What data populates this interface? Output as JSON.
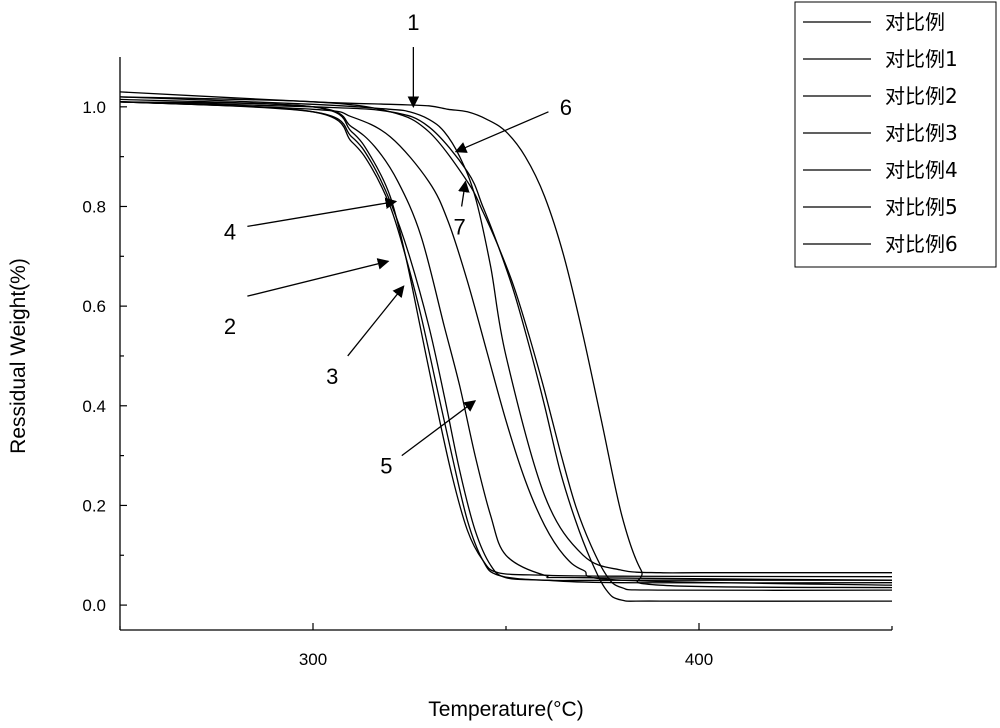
{
  "chart_data": {
    "type": "line",
    "xlabel": "Temperature(°C)",
    "ylabel": "Ressidual Weight(%)",
    "xlim": [
      250,
      450
    ],
    "ylim": [
      -0.05,
      1.1
    ],
    "x_ticks": [
      300,
      400
    ],
    "x_tick_labels": [
      "300",
      "400"
    ],
    "y_ticks": [
      0.0,
      0.2,
      0.4,
      0.6,
      0.8,
      1.0
    ],
    "y_tick_labels": [
      "0.0",
      "0.2",
      "0.4",
      "0.6",
      "0.8",
      "1.0"
    ],
    "legend_position": "top-right",
    "line_color": "#000000",
    "series": [
      {
        "name": "对比例",
        "x": [
          250,
          300,
          320,
          325,
          330,
          334,
          338,
          342,
          346,
          350,
          360,
          370,
          380,
          390,
          400,
          420,
          450
        ],
        "y": [
          1.02,
          1.005,
          0.995,
          0.99,
          0.975,
          0.95,
          0.9,
          0.82,
          0.68,
          0.5,
          0.22,
          0.1,
          0.07,
          0.065,
          0.065,
          0.065,
          0.065
        ]
      },
      {
        "name": "对比例1",
        "x": [
          250,
          300,
          310,
          315,
          320,
          324,
          328,
          332,
          336,
          340,
          344,
          348,
          360,
          380,
          450
        ],
        "y": [
          1.01,
          1.0,
          0.95,
          0.9,
          0.82,
          0.7,
          0.55,
          0.4,
          0.26,
          0.15,
          0.09,
          0.065,
          0.06,
          0.058,
          0.057
        ]
      },
      {
        "name": "对比例2",
        "x": [
          250,
          300,
          310,
          315,
          320,
          324,
          328,
          332,
          336,
          340,
          344,
          348,
          360,
          380,
          450
        ],
        "y": [
          1.01,
          0.99,
          0.93,
          0.88,
          0.8,
          0.7,
          0.58,
          0.44,
          0.3,
          0.17,
          0.09,
          0.06,
          0.05,
          0.05,
          0.05
        ]
      },
      {
        "name": "对比例3",
        "x": [
          250,
          300,
          310,
          315,
          320,
          325,
          330,
          334,
          338,
          342,
          346,
          350,
          360,
          380,
          450
        ],
        "y": [
          1.01,
          0.99,
          0.94,
          0.89,
          0.81,
          0.7,
          0.56,
          0.42,
          0.27,
          0.15,
          0.08,
          0.055,
          0.05,
          0.045,
          0.045
        ]
      },
      {
        "name": "对比例4",
        "x": [
          250,
          300,
          310,
          316,
          322,
          328,
          334,
          338,
          342,
          346,
          350,
          360,
          370,
          450
        ],
        "y": [
          1.015,
          1.0,
          0.96,
          0.92,
          0.85,
          0.74,
          0.56,
          0.44,
          0.3,
          0.18,
          0.1,
          0.06,
          0.055,
          0.05
        ]
      },
      {
        "name": "对比例5",
        "x": [
          250,
          300,
          310,
          320,
          330,
          335,
          340,
          345,
          350,
          355,
          360,
          365,
          370,
          380,
          450
        ],
        "y": [
          1.01,
          0.995,
          0.98,
          0.94,
          0.85,
          0.77,
          0.65,
          0.51,
          0.37,
          0.25,
          0.16,
          0.1,
          0.07,
          0.05,
          0.04
        ]
      },
      {
        "name": "对比例6",
        "x": [
          250,
          300,
          320,
          330,
          340,
          344,
          348,
          352,
          356,
          360,
          364,
          368,
          372,
          376,
          380,
          390,
          450
        ],
        "y": [
          1.02,
          1.01,
          0.99,
          0.95,
          0.85,
          0.79,
          0.72,
          0.64,
          0.54,
          0.43,
          0.31,
          0.2,
          0.12,
          0.06,
          0.035,
          0.03,
          0.03
        ]
      },
      {
        "name": "",
        "x": [
          250,
          300,
          320,
          330,
          340,
          344,
          348,
          352,
          356,
          360,
          364,
          368,
          372,
          376,
          380,
          390,
          450
        ],
        "y": [
          1.01,
          1.0,
          0.99,
          0.96,
          0.87,
          0.8,
          0.72,
          0.63,
          0.52,
          0.4,
          0.27,
          0.17,
          0.09,
          0.03,
          0.01,
          0.008,
          0.008
        ]
      },
      {
        "name": "",
        "x": [
          250,
          300,
          320,
          330,
          335,
          340,
          345,
          350,
          355,
          360,
          365,
          370,
          375,
          380,
          385,
          390,
          450
        ],
        "y": [
          1.03,
          1.01,
          1.005,
          1.002,
          0.995,
          0.99,
          0.975,
          0.95,
          0.9,
          0.82,
          0.7,
          0.54,
          0.36,
          0.18,
          0.07,
          0.04,
          0.035
        ]
      }
    ],
    "annotations": [
      {
        "label": "1",
        "text_at": [
          326,
          1.17
        ],
        "arrow_from": [
          326,
          1.12
        ],
        "arrow_to": [
          326,
          1.0
        ]
      },
      {
        "label": "2",
        "text_at": [
          278.5,
          0.56
        ],
        "arrow_from": [
          283,
          0.62
        ],
        "arrow_to": [
          319.5,
          0.69
        ]
      },
      {
        "label": "3",
        "text_at": [
          305,
          0.46
        ],
        "arrow_from": [
          309,
          0.5
        ],
        "arrow_to": [
          323.5,
          0.64
        ]
      },
      {
        "label": "4",
        "text_at": [
          278.5,
          0.75
        ],
        "arrow_from": [
          283,
          0.76
        ],
        "arrow_to": [
          321.5,
          0.81
        ]
      },
      {
        "label": "5",
        "text_at": [
          319,
          0.28
        ],
        "arrow_from": [
          323,
          0.3
        ],
        "arrow_to": [
          342,
          0.41
        ]
      },
      {
        "label": "6",
        "text_at": [
          365.5,
          1.0
        ],
        "arrow_from": [
          361,
          0.99
        ],
        "arrow_to": [
          337,
          0.91
        ]
      },
      {
        "label": "7",
        "text_at": [
          338,
          0.76
        ],
        "arrow_from": [
          338.5,
          0.8
        ],
        "arrow_to": [
          339.5,
          0.85
        ]
      }
    ]
  }
}
